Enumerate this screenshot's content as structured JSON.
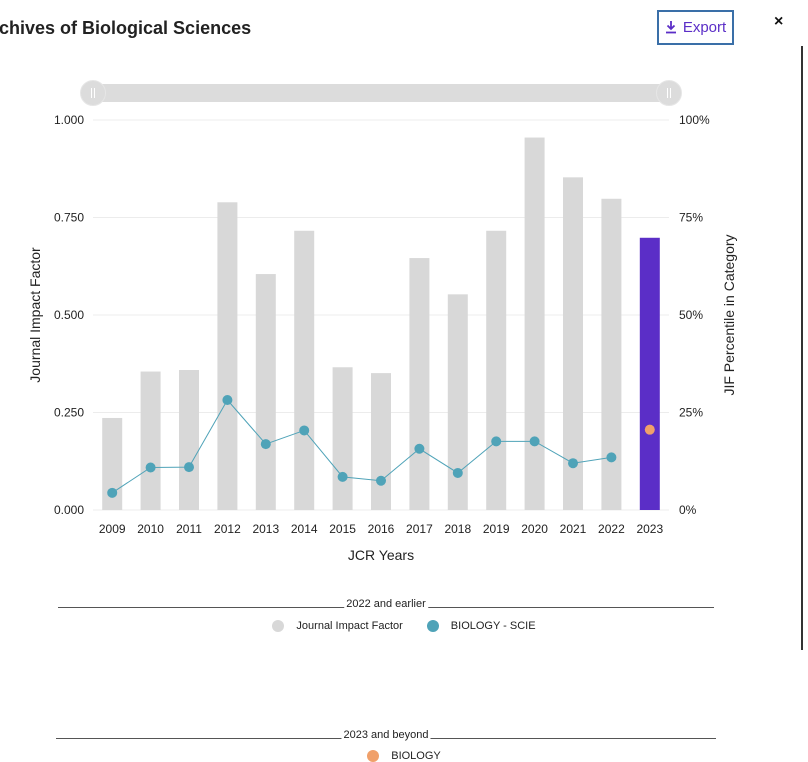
{
  "header": {
    "title": "rchives of Biological Sciences",
    "export_label": "Export",
    "close_label": "×"
  },
  "colors": {
    "bar": "#d8d8d8",
    "bar_highlight": "#5b2ec7",
    "series_line": "#4fa3b8",
    "category_point_2023": "#f0a06a"
  },
  "chart_data": {
    "type": "bar",
    "categories": [
      "2009",
      "2010",
      "2011",
      "2012",
      "2013",
      "2014",
      "2015",
      "2016",
      "2017",
      "2018",
      "2019",
      "2020",
      "2021",
      "2022",
      "2023"
    ],
    "xlabel": "JCR Years",
    "ylabel": "Journal Impact Factor",
    "y2label": "JIF Percentile in Category",
    "ylim": [
      0,
      1.0
    ],
    "y2lim": [
      0,
      100
    ],
    "yticks": [
      "0.000",
      "0.250",
      "0.500",
      "0.750",
      "1.000"
    ],
    "y2ticks": [
      "0%",
      "25%",
      "50%",
      "75%",
      "100%"
    ],
    "grid": true,
    "series": [
      {
        "name": "Journal Impact Factor",
        "type": "bar",
        "values": [
          0.236,
          0.355,
          0.359,
          0.789,
          0.605,
          0.716,
          0.366,
          0.351,
          0.646,
          0.553,
          0.716,
          0.955,
          0.853,
          0.798,
          0.698
        ],
        "highlight_index": 14
      },
      {
        "name": "BIOLOGY - SCIE",
        "type": "line",
        "axis": "right",
        "values": [
          4.4,
          10.9,
          11.0,
          28.2,
          16.9,
          20.4,
          8.5,
          7.5,
          15.7,
          9.5,
          17.6,
          17.6,
          12.0,
          13.5,
          null
        ]
      },
      {
        "name": "BIOLOGY",
        "type": "point",
        "axis": "right",
        "values": [
          null,
          null,
          null,
          null,
          null,
          null,
          null,
          null,
          null,
          null,
          null,
          null,
          null,
          null,
          20.6
        ]
      }
    ]
  },
  "legend": {
    "group1_label": "2022 and earlier",
    "group1_items": [
      "Journal Impact Factor",
      "BIOLOGY - SCIE"
    ],
    "group2_label": "2023 and beyond",
    "group2_items": [
      "BIOLOGY"
    ]
  }
}
